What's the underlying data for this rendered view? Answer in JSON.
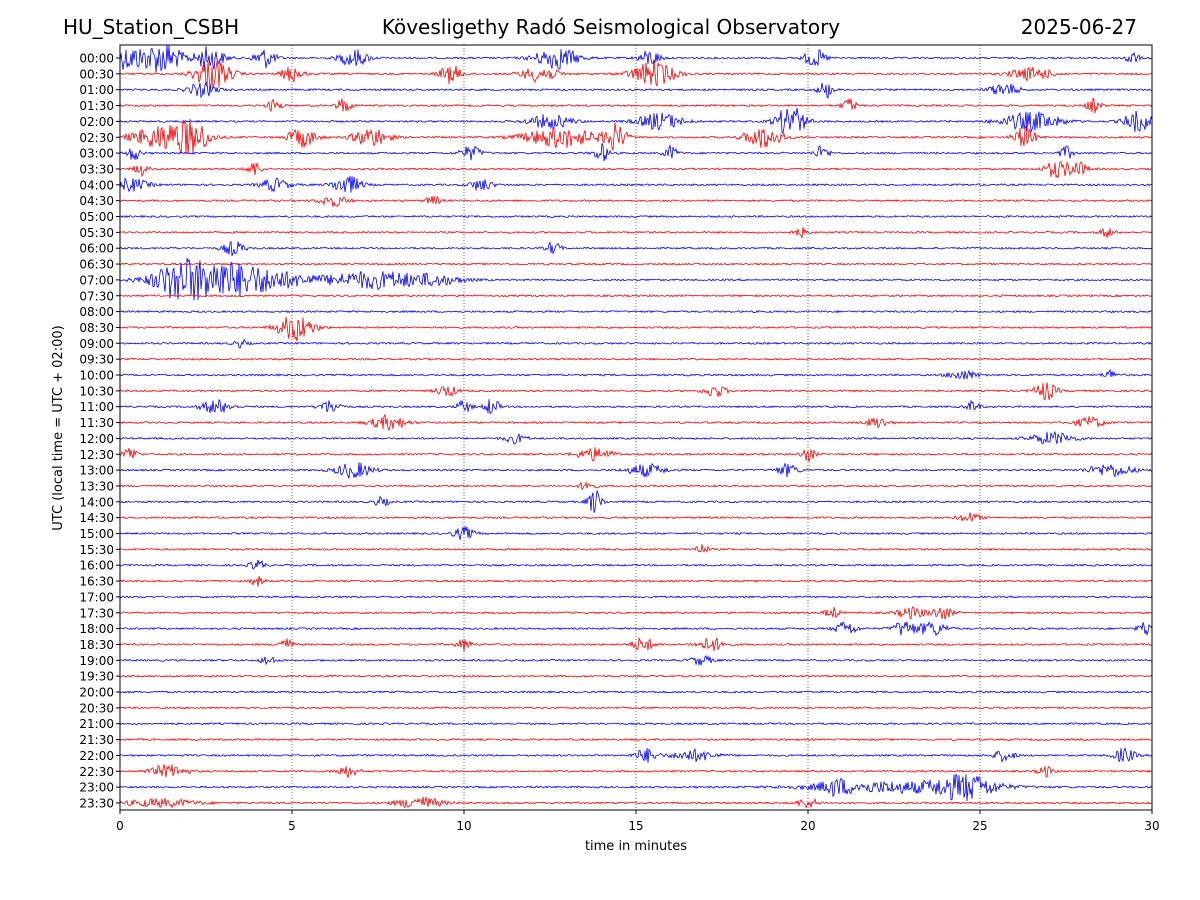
{
  "header": {
    "station": "HU_Station_CSBH",
    "observatory": "Kövesligethy Radó Seismological Observatory",
    "date": "2025-06-27"
  },
  "chart_data": {
    "type": "line",
    "title": "",
    "xlabel": "time in minutes",
    "ylabel": "UTC (local time = UTC + 02:00)",
    "xlim": [
      0,
      30
    ],
    "x_ticks": [
      "0",
      "5",
      "10",
      "15",
      "20",
      "25",
      "30"
    ],
    "x_tick_values": [
      0,
      5,
      10,
      15,
      20,
      25,
      30
    ],
    "grid": "vertical dotted lines at 5, 10, 15, 20, 25",
    "colors": {
      "odd_hour": "#0000ff",
      "half_hour": "#ff0000",
      "grid": "#000000"
    },
    "rows": [
      {
        "label": "00:00",
        "color": "#0000ff",
        "bursts": [
          [
            0.2,
            0.8,
            2.8
          ],
          [
            1.3,
            0.5,
            3.5
          ],
          [
            2.6,
            0.4,
            3.0
          ],
          [
            4.2,
            0.3,
            2.5
          ],
          [
            6.8,
            0.4,
            2.2
          ],
          [
            12.7,
            0.6,
            2.8
          ],
          [
            15.4,
            0.3,
            2.0
          ],
          [
            20.2,
            0.3,
            2.2
          ],
          [
            29.4,
            0.2,
            1.6
          ]
        ]
      },
      {
        "label": "00:30",
        "color": "#ff0000",
        "bursts": [
          [
            2.7,
            0.5,
            4.0
          ],
          [
            5.0,
            0.3,
            2.0
          ],
          [
            9.6,
            0.3,
            2.4
          ],
          [
            12.2,
            0.5,
            2.0
          ],
          [
            15.5,
            0.6,
            3.2
          ],
          [
            26.5,
            0.6,
            1.6
          ]
        ]
      },
      {
        "label": "01:00",
        "color": "#0000ff",
        "bursts": [
          [
            2.4,
            0.4,
            1.8
          ],
          [
            20.5,
            0.2,
            2.2
          ],
          [
            25.7,
            0.4,
            1.6
          ]
        ]
      },
      {
        "label": "01:30",
        "color": "#ff0000",
        "bursts": [
          [
            4.5,
            0.2,
            1.6
          ],
          [
            6.5,
            0.2,
            2.0
          ],
          [
            21.2,
            0.2,
            1.8
          ],
          [
            28.3,
            0.2,
            1.8
          ]
        ]
      },
      {
        "label": "02:00",
        "color": "#0000ff",
        "bursts": [
          [
            12.5,
            0.6,
            1.8
          ],
          [
            15.7,
            0.6,
            2.2
          ],
          [
            19.5,
            0.4,
            4.2
          ],
          [
            26.5,
            0.8,
            2.4
          ],
          [
            29.6,
            0.4,
            2.6
          ]
        ]
      },
      {
        "label": "02:30",
        "color": "#ff0000",
        "bursts": [
          [
            1.2,
            0.8,
            3.0
          ],
          [
            2.1,
            0.5,
            3.8
          ],
          [
            5.3,
            0.4,
            2.4
          ],
          [
            7.3,
            0.5,
            2.4
          ],
          [
            12.8,
            1.0,
            2.6
          ],
          [
            14.4,
            0.3,
            3.4
          ],
          [
            18.7,
            0.5,
            2.8
          ],
          [
            26.3,
            0.3,
            2.8
          ]
        ]
      },
      {
        "label": "03:00",
        "color": "#0000ff",
        "bursts": [
          [
            0.4,
            0.2,
            1.8
          ],
          [
            10.2,
            0.3,
            1.8
          ],
          [
            14.0,
            0.2,
            2.4
          ],
          [
            16.0,
            0.2,
            1.8
          ],
          [
            20.4,
            0.2,
            1.8
          ],
          [
            27.5,
            0.2,
            1.6
          ]
        ]
      },
      {
        "label": "03:30",
        "color": "#ff0000",
        "bursts": [
          [
            0.6,
            0.2,
            1.6
          ],
          [
            3.9,
            0.2,
            1.8
          ],
          [
            27.2,
            0.3,
            2.2
          ],
          [
            27.8,
            0.3,
            2.0
          ]
        ]
      },
      {
        "label": "04:00",
        "color": "#0000ff",
        "bursts": [
          [
            0.3,
            0.5,
            1.6
          ],
          [
            4.5,
            0.4,
            1.6
          ],
          [
            6.6,
            0.4,
            2.4
          ],
          [
            10.5,
            0.3,
            1.6
          ]
        ]
      },
      {
        "label": "04:30",
        "color": "#ff0000",
        "bursts": [
          [
            6.2,
            0.4,
            1.4
          ],
          [
            9.1,
            0.2,
            1.2
          ]
        ]
      },
      {
        "label": "05:00",
        "color": "#0000ff",
        "bursts": []
      },
      {
        "label": "05:30",
        "color": "#ff0000",
        "bursts": [
          [
            19.8,
            0.2,
            1.2
          ],
          [
            28.7,
            0.2,
            1.2
          ]
        ]
      },
      {
        "label": "06:00",
        "color": "#0000ff",
        "bursts": [
          [
            3.3,
            0.3,
            1.8
          ],
          [
            12.6,
            0.2,
            1.6
          ]
        ]
      },
      {
        "label": "06:30",
        "color": "#ff0000",
        "bursts": []
      },
      {
        "label": "07:00",
        "color": "#0000ff",
        "bursts": [
          [
            2.8,
            1.5,
            4.6
          ],
          [
            1.7,
            0.6,
            3.0
          ],
          [
            4.5,
            1.2,
            1.3
          ],
          [
            7.4,
            1.4,
            2.2
          ],
          [
            9.2,
            0.8,
            1.0
          ]
        ]
      },
      {
        "label": "07:30",
        "color": "#ff0000",
        "bursts": []
      },
      {
        "label": "08:00",
        "color": "#0000ff",
        "bursts": []
      },
      {
        "label": "08:30",
        "color": "#ff0000",
        "bursts": [
          [
            5.1,
            0.5,
            3.4
          ]
        ]
      },
      {
        "label": "09:00",
        "color": "#0000ff",
        "bursts": [
          [
            3.5,
            0.2,
            1.0
          ]
        ]
      },
      {
        "label": "09:30",
        "color": "#ff0000",
        "bursts": []
      },
      {
        "label": "10:00",
        "color": "#0000ff",
        "bursts": [
          [
            24.5,
            0.4,
            1.2
          ],
          [
            28.8,
            0.2,
            1.2
          ]
        ]
      },
      {
        "label": "10:30",
        "color": "#ff0000",
        "bursts": [
          [
            9.5,
            0.3,
            1.4
          ],
          [
            17.3,
            0.3,
            1.6
          ],
          [
            26.9,
            0.3,
            2.4
          ]
        ]
      },
      {
        "label": "11:00",
        "color": "#0000ff",
        "bursts": [
          [
            2.8,
            0.4,
            1.8
          ],
          [
            6.1,
            0.3,
            1.6
          ],
          [
            10.0,
            0.2,
            1.6
          ],
          [
            10.8,
            0.2,
            2.2
          ],
          [
            24.8,
            0.2,
            1.4
          ]
        ]
      },
      {
        "label": "11:30",
        "color": "#ff0000",
        "bursts": [
          [
            7.8,
            0.5,
            1.8
          ],
          [
            22.0,
            0.3,
            1.4
          ],
          [
            28.2,
            0.4,
            1.4
          ]
        ]
      },
      {
        "label": "12:00",
        "color": "#0000ff",
        "bursts": [
          [
            11.5,
            0.3,
            1.2
          ],
          [
            27.1,
            0.6,
            1.6
          ]
        ]
      },
      {
        "label": "12:30",
        "color": "#ff0000",
        "bursts": [
          [
            0.3,
            0.2,
            1.8
          ],
          [
            13.8,
            0.5,
            1.6
          ],
          [
            20.0,
            0.2,
            1.8
          ]
        ]
      },
      {
        "label": "13:00",
        "color": "#0000ff",
        "bursts": [
          [
            6.8,
            0.5,
            2.0
          ],
          [
            15.3,
            0.5,
            1.6
          ],
          [
            19.4,
            0.3,
            1.6
          ],
          [
            28.8,
            0.6,
            1.6
          ]
        ]
      },
      {
        "label": "13:30",
        "color": "#ff0000",
        "bursts": [
          [
            13.6,
            0.2,
            1.6
          ]
        ]
      },
      {
        "label": "14:00",
        "color": "#0000ff",
        "bursts": [
          [
            13.8,
            0.2,
            3.2
          ],
          [
            7.6,
            0.2,
            1.2
          ]
        ]
      },
      {
        "label": "14:30",
        "color": "#ff0000",
        "bursts": [
          [
            24.7,
            0.3,
            1.2
          ]
        ]
      },
      {
        "label": "15:00",
        "color": "#0000ff",
        "bursts": [
          [
            10.0,
            0.3,
            1.6
          ]
        ]
      },
      {
        "label": "15:30",
        "color": "#ff0000",
        "bursts": [
          [
            16.9,
            0.2,
            1.2
          ]
        ]
      },
      {
        "label": "16:00",
        "color": "#0000ff",
        "bursts": [
          [
            4.0,
            0.2,
            1.4
          ]
        ]
      },
      {
        "label": "16:30",
        "color": "#ff0000",
        "bursts": [
          [
            4.0,
            0.2,
            1.2
          ]
        ]
      },
      {
        "label": "17:00",
        "color": "#0000ff",
        "bursts": []
      },
      {
        "label": "17:30",
        "color": "#ff0000",
        "bursts": [
          [
            20.7,
            0.2,
            1.4
          ],
          [
            23.0,
            0.4,
            1.4
          ],
          [
            23.9,
            0.3,
            1.6
          ]
        ]
      },
      {
        "label": "18:00",
        "color": "#0000ff",
        "bursts": [
          [
            21.1,
            0.3,
            1.8
          ],
          [
            22.8,
            0.3,
            2.0
          ],
          [
            23.6,
            0.4,
            1.8
          ],
          [
            29.8,
            0.2,
            1.8
          ]
        ]
      },
      {
        "label": "18:30",
        "color": "#ff0000",
        "bursts": [
          [
            4.8,
            0.2,
            1.6
          ],
          [
            10.0,
            0.2,
            1.6
          ],
          [
            15.2,
            0.3,
            1.8
          ],
          [
            17.2,
            0.4,
            1.6
          ]
        ]
      },
      {
        "label": "19:00",
        "color": "#0000ff",
        "bursts": [
          [
            4.3,
            0.2,
            1.2
          ],
          [
            16.9,
            0.3,
            1.2
          ]
        ]
      },
      {
        "label": "19:30",
        "color": "#ff0000",
        "bursts": []
      },
      {
        "label": "20:00",
        "color": "#0000ff",
        "bursts": []
      },
      {
        "label": "20:30",
        "color": "#ff0000",
        "bursts": []
      },
      {
        "label": "21:00",
        "color": "#0000ff",
        "bursts": []
      },
      {
        "label": "21:30",
        "color": "#ff0000",
        "bursts": []
      },
      {
        "label": "22:00",
        "color": "#0000ff",
        "bursts": [
          [
            15.3,
            0.3,
            1.8
          ],
          [
            16.7,
            0.6,
            1.4
          ],
          [
            25.7,
            0.3,
            1.4
          ],
          [
            29.2,
            0.3,
            1.8
          ]
        ]
      },
      {
        "label": "22:30",
        "color": "#ff0000",
        "bursts": [
          [
            1.4,
            0.5,
            1.6
          ],
          [
            6.6,
            0.3,
            1.4
          ],
          [
            26.9,
            0.2,
            1.4
          ]
        ]
      },
      {
        "label": "23:00",
        "color": "#0000ff",
        "bursts": [
          [
            22.6,
            2.4,
            1.4
          ],
          [
            24.6,
            0.8,
            2.8
          ],
          [
            20.8,
            0.4,
            1.6
          ]
        ]
      },
      {
        "label": "23:30",
        "color": "#ff0000",
        "bursts": [
          [
            1.2,
            1.0,
            1.0
          ],
          [
            8.7,
            0.6,
            1.6
          ],
          [
            20.0,
            0.3,
            1.2
          ]
        ]
      }
    ]
  }
}
